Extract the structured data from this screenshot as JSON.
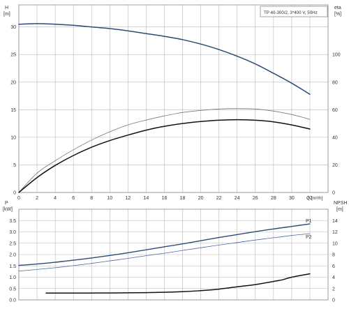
{
  "colors": {
    "grid": "#b8b8b8",
    "frame": "#8a8a8a",
    "text": "#333333",
    "head_curve": "#2a4b78",
    "p1_curve": "#2a4b78",
    "p2_curve": "#4a6a9a",
    "eta_thin": "#777777",
    "eta_thick": "#111111",
    "npsh_curve": "#111111"
  },
  "chart_data": [
    {
      "type": "line",
      "title_box": "TP 40-300/2, 3*400 V, 50Hz",
      "xlabel": "Q [m³/h]",
      "x_ticks": [
        "0",
        "2",
        "4",
        "6",
        "8",
        "10",
        "12",
        "14",
        "16",
        "18",
        "20",
        "22",
        "24",
        "26",
        "28",
        "30",
        "32"
      ],
      "xlim": [
        0,
        34
      ],
      "ylabel_left": {
        "symbol": "H",
        "unit": "[m]"
      },
      "ylim_left": [
        0,
        34
      ],
      "y_ticks_left": [
        "0",
        "5",
        "10",
        "15",
        "20",
        "25",
        "30"
      ],
      "ylabel_right": {
        "symbol": "eta",
        "unit": "[%]"
      },
      "ylim_right": [
        0,
        136
      ],
      "y_ticks_right": [
        "0",
        "20",
        "40",
        "60",
        "80",
        "100"
      ],
      "grid": true,
      "series": [
        {
          "axis": "left",
          "style": "head",
          "x": [
            0,
            2,
            4,
            6,
            8,
            10,
            12,
            14,
            16,
            18,
            20,
            22,
            24,
            26,
            28,
            30,
            32
          ],
          "y": [
            30.5,
            30.6,
            30.5,
            30.3,
            30.0,
            29.7,
            29.3,
            28.8,
            28.3,
            27.7,
            26.9,
            25.9,
            24.7,
            23.3,
            21.6,
            19.8,
            17.8
          ]
        },
        {
          "axis": "right",
          "style": "eta_thin",
          "x": [
            0,
            2,
            4,
            6,
            8,
            10,
            12,
            14,
            16,
            18,
            20,
            22,
            24,
            26,
            28,
            30,
            32
          ],
          "y": [
            0,
            14,
            23,
            31,
            38,
            44,
            49,
            52.5,
            55.5,
            58,
            59.5,
            60.5,
            60.8,
            60.5,
            59,
            56.5,
            53
          ]
        },
        {
          "axis": "right",
          "style": "eta_thick",
          "x": [
            0,
            2,
            4,
            6,
            8,
            10,
            12,
            14,
            16,
            18,
            20,
            22,
            24,
            26,
            28,
            30,
            32
          ],
          "y": [
            0,
            10.8,
            19.6,
            26.8,
            32.8,
            37.6,
            41.6,
            45.2,
            48,
            50,
            51.4,
            52.4,
            52.8,
            52.4,
            51.2,
            49,
            46
          ]
        }
      ]
    },
    {
      "type": "line",
      "xlim": [
        0,
        34
      ],
      "ylabel_left": {
        "symbol": "P",
        "unit": "[kW]"
      },
      "ylim_left": [
        0,
        4.0
      ],
      "y_ticks_left": [
        "0.0",
        "0.5",
        "1.0",
        "1.5",
        "2.0",
        "2.5",
        "3.0",
        "3.5"
      ],
      "ylabel_right": {
        "symbol": "NPSH",
        "unit": "[m]"
      },
      "ylim_right": [
        0,
        16
      ],
      "y_ticks_right": [
        "0",
        "2",
        "4",
        "6",
        "8",
        "10",
        "12",
        "14"
      ],
      "grid": true,
      "series": [
        {
          "name": "P1",
          "axis": "left",
          "style": "p1",
          "x": [
            0,
            2,
            4,
            6,
            8,
            10,
            12,
            14,
            16,
            18,
            20,
            22,
            24,
            26,
            28,
            30,
            32
          ],
          "y": [
            1.52,
            1.58,
            1.66,
            1.75,
            1.85,
            1.96,
            2.08,
            2.21,
            2.34,
            2.47,
            2.61,
            2.75,
            2.88,
            3.01,
            3.13,
            3.24,
            3.35
          ]
        },
        {
          "name": "P2",
          "axis": "left",
          "style": "p2",
          "x": [
            0,
            2,
            4,
            6,
            8,
            10,
            12,
            14,
            16,
            18,
            20,
            22,
            24,
            26,
            28,
            30,
            32
          ],
          "y": [
            1.27,
            1.34,
            1.42,
            1.51,
            1.61,
            1.72,
            1.83,
            1.95,
            2.06,
            2.18,
            2.3,
            2.42,
            2.53,
            2.64,
            2.74,
            2.84,
            2.92
          ]
        },
        {
          "axis": "right",
          "style": "npsh",
          "x": [
            3,
            6,
            10,
            14,
            18,
            20,
            22,
            24,
            26,
            28,
            29,
            30,
            32
          ],
          "y": [
            1.2,
            1.2,
            1.22,
            1.28,
            1.45,
            1.62,
            1.9,
            2.3,
            2.7,
            3.25,
            3.55,
            4.0,
            4.6
          ]
        }
      ]
    }
  ]
}
